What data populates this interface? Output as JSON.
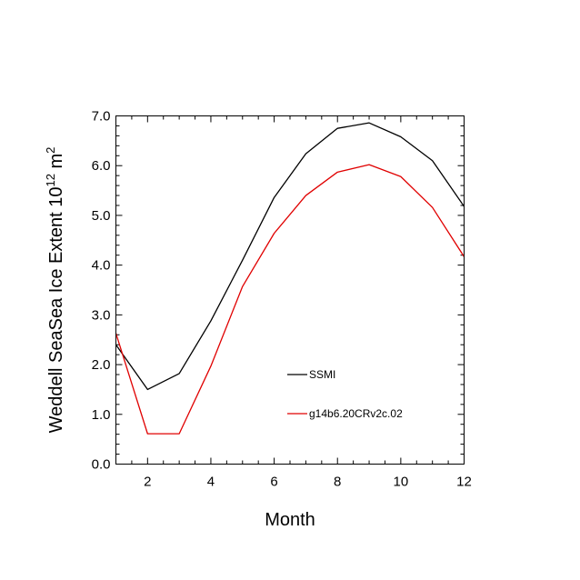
{
  "chart_data": {
    "type": "line",
    "title": "",
    "xlabel": "Month",
    "ylabel": {
      "main": "Weddell SeaSea Ice Extent 10",
      "exp": "12",
      "unit": " m",
      "unit_exp": "2"
    },
    "xlim": [
      1,
      12
    ],
    "ylim": [
      0,
      7
    ],
    "x_ticks": [
      2,
      4,
      6,
      8,
      10,
      12
    ],
    "x_tick_labels": [
      "2",
      "4",
      "6",
      "8",
      "10",
      "12"
    ],
    "y_ticks": [
      0,
      1,
      2,
      3,
      4,
      5,
      6,
      7
    ],
    "y_tick_labels": [
      "0.0",
      "1.0",
      "2.0",
      "3.0",
      "4.0",
      "5.0",
      "6.0",
      "7.0"
    ],
    "grid": false,
    "legend_position": "lower-right inside",
    "x": [
      1,
      2,
      3,
      4,
      5,
      6,
      7,
      8,
      9,
      10,
      11,
      12
    ],
    "series": [
      {
        "name": "SSMI",
        "color": "#000000",
        "values": [
          2.4,
          1.5,
          1.82,
          2.88,
          4.1,
          5.36,
          6.24,
          6.75,
          6.86,
          6.58,
          6.1,
          5.18
        ]
      },
      {
        "name": "g14b6.20CRv2c.02",
        "color": "#e00000",
        "values": [
          2.63,
          0.61,
          0.61,
          1.97,
          3.57,
          4.64,
          5.4,
          5.87,
          6.02,
          5.78,
          5.16,
          4.17
        ]
      }
    ]
  }
}
